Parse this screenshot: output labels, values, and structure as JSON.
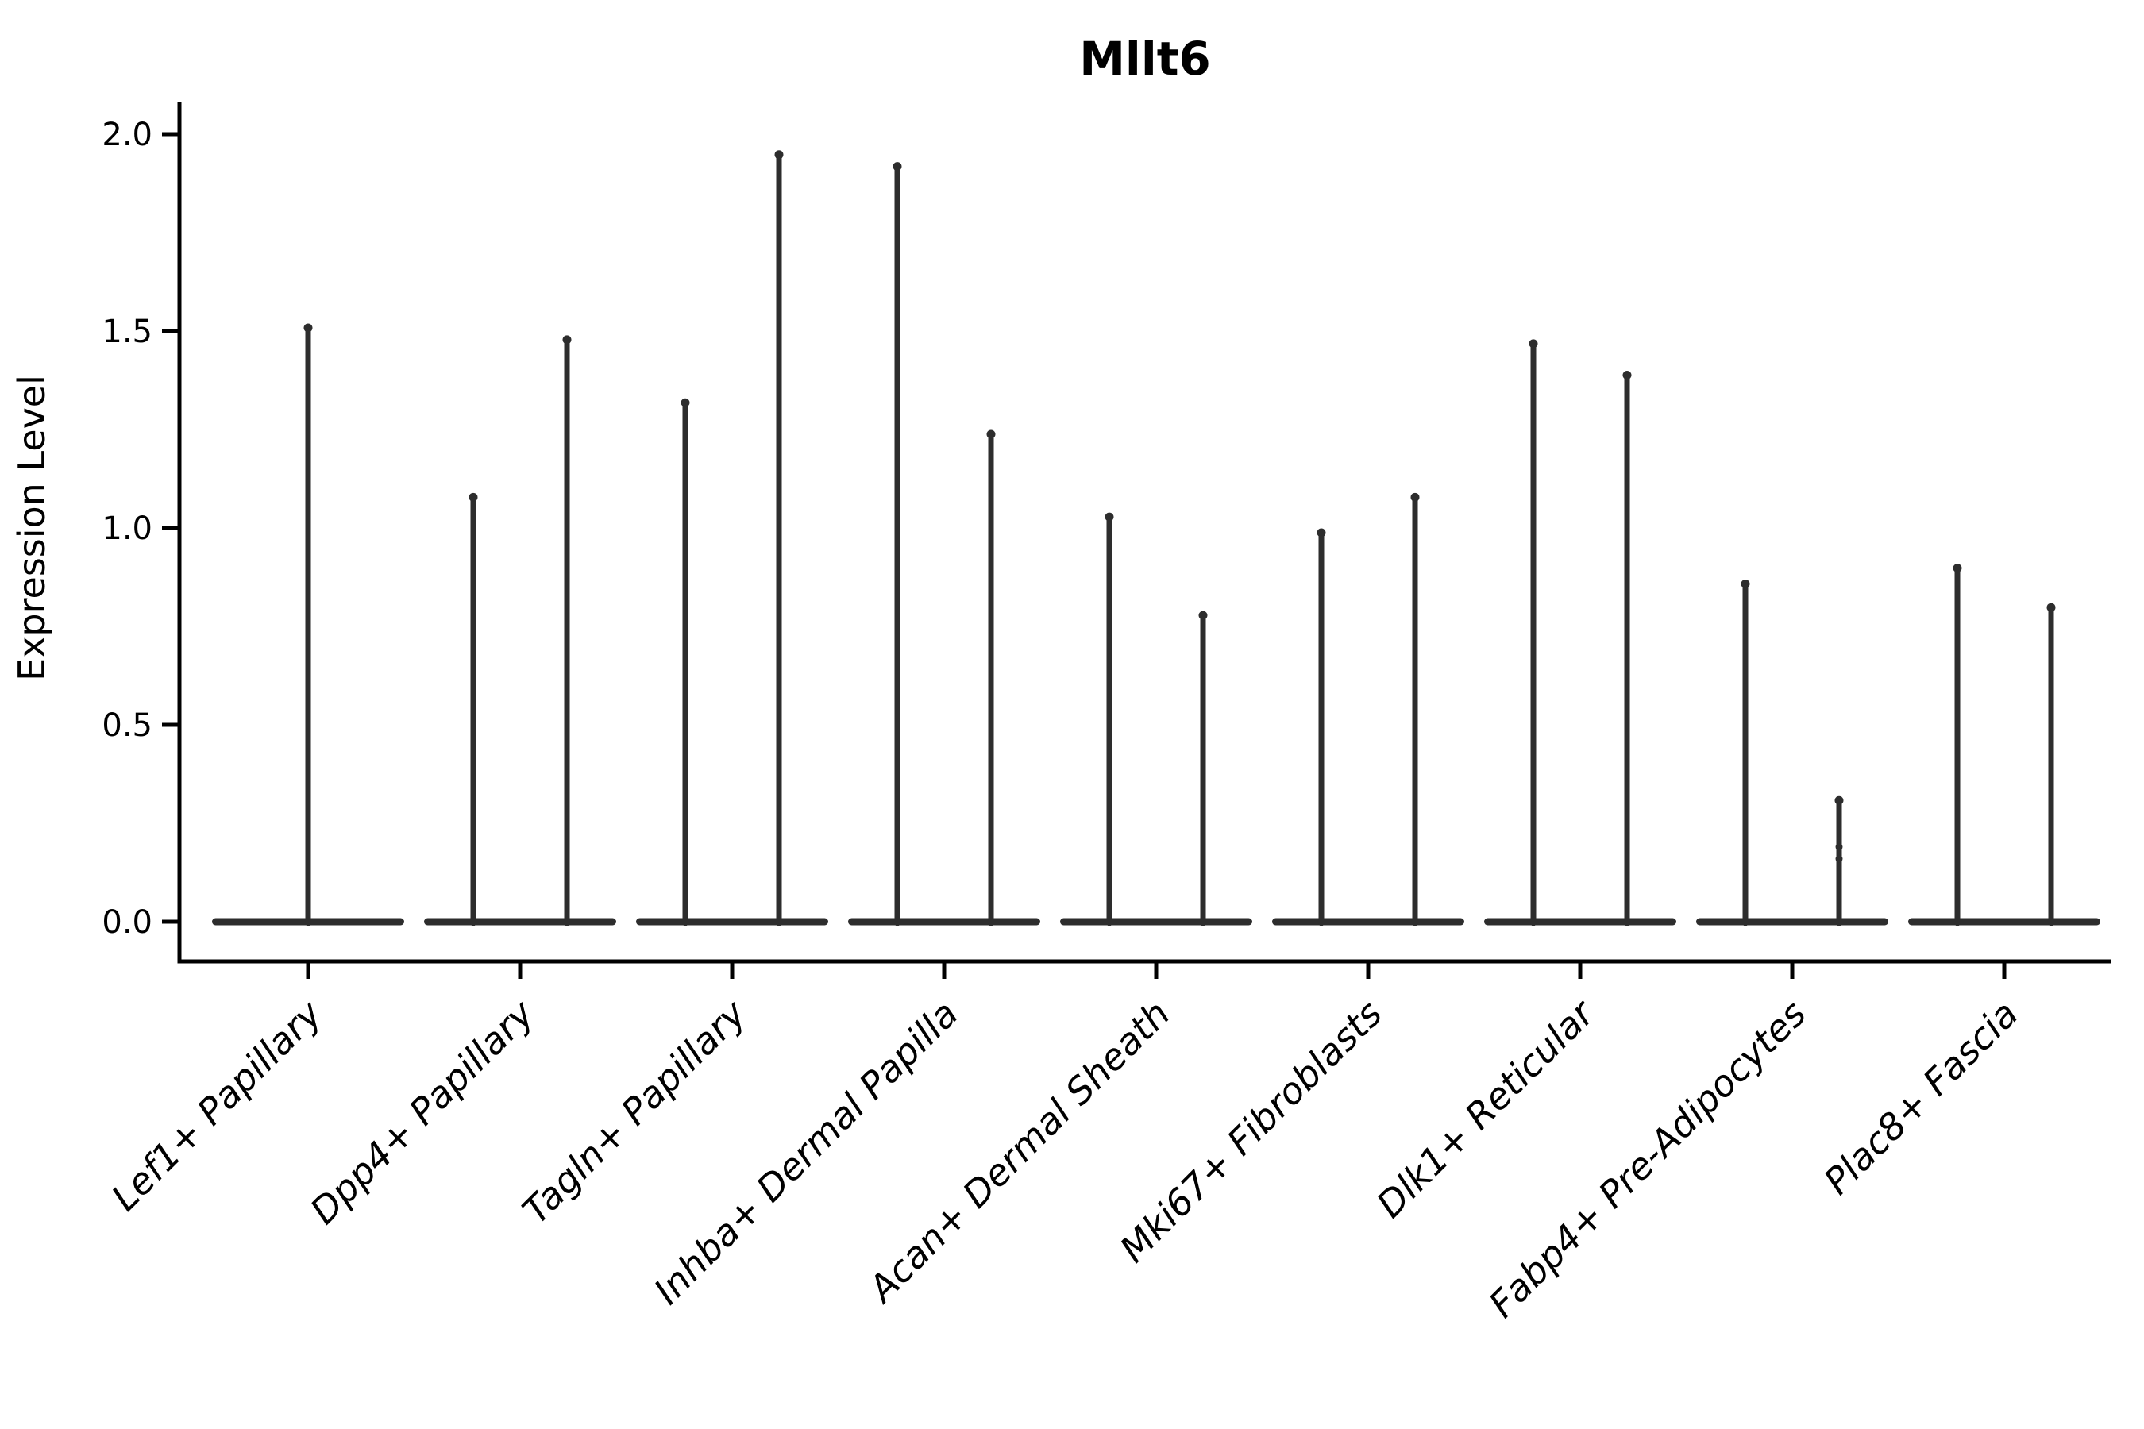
{
  "chart_data": {
    "type": "violin",
    "title": "Mllt6",
    "xlabel": "",
    "ylabel": "Expression Level",
    "ylim": [
      0.0,
      2.0
    ],
    "yticks": [
      0.0,
      0.5,
      1.0,
      1.5,
      2.0
    ],
    "ytick_labels": [
      "0.0",
      "0.5",
      "1.0",
      "1.5",
      "2.0"
    ],
    "x_tick_rotation": 45,
    "grid": false,
    "legend": "none",
    "baseline_value": 0.0,
    "categories": [
      "Lef1+ Papillary",
      "Dpp4+ Papillary",
      "Tagln+ Papillary",
      "Inhba+ Dermal Papilla",
      "Acan+ Dermal Sheath",
      "Mki67+ Fibroblasts",
      "Dlk1+ Reticular",
      "Fabp4+ Pre-Adipocytes",
      "Plac8+ Fascia"
    ],
    "violins": [
      {
        "category": "Lef1+ Papillary",
        "spike_maxima": [
          1.51
        ],
        "extra_points": []
      },
      {
        "category": "Dpp4+ Papillary",
        "spike_maxima": [
          1.08,
          1.48
        ],
        "extra_points": []
      },
      {
        "category": "Tagln+ Papillary",
        "spike_maxima": [
          1.32,
          1.95
        ],
        "extra_points": []
      },
      {
        "category": "Inhba+ Dermal Papilla",
        "spike_maxima": [
          1.92,
          1.24
        ],
        "extra_points": []
      },
      {
        "category": "Acan+ Dermal Sheath",
        "spike_maxima": [
          1.03,
          0.78
        ],
        "extra_points": []
      },
      {
        "category": "Mki67+ Fibroblasts",
        "spike_maxima": [
          0.99,
          1.08
        ],
        "extra_points": []
      },
      {
        "category": "Dlk1+ Reticular",
        "spike_maxima": [
          1.47,
          1.39
        ],
        "extra_points": []
      },
      {
        "category": "Fabp4+ Pre-Adipocytes",
        "spike_maxima": [
          0.86,
          0.31
        ],
        "extra_points": [
          0.19,
          0.16
        ]
      },
      {
        "category": "Plac8+ Fascia",
        "spike_maxima": [
          0.9,
          0.8
        ],
        "extra_points": []
      }
    ],
    "colors": {
      "violin": "#2d2d2d",
      "axis": "#000000",
      "background": "#ffffff"
    }
  }
}
